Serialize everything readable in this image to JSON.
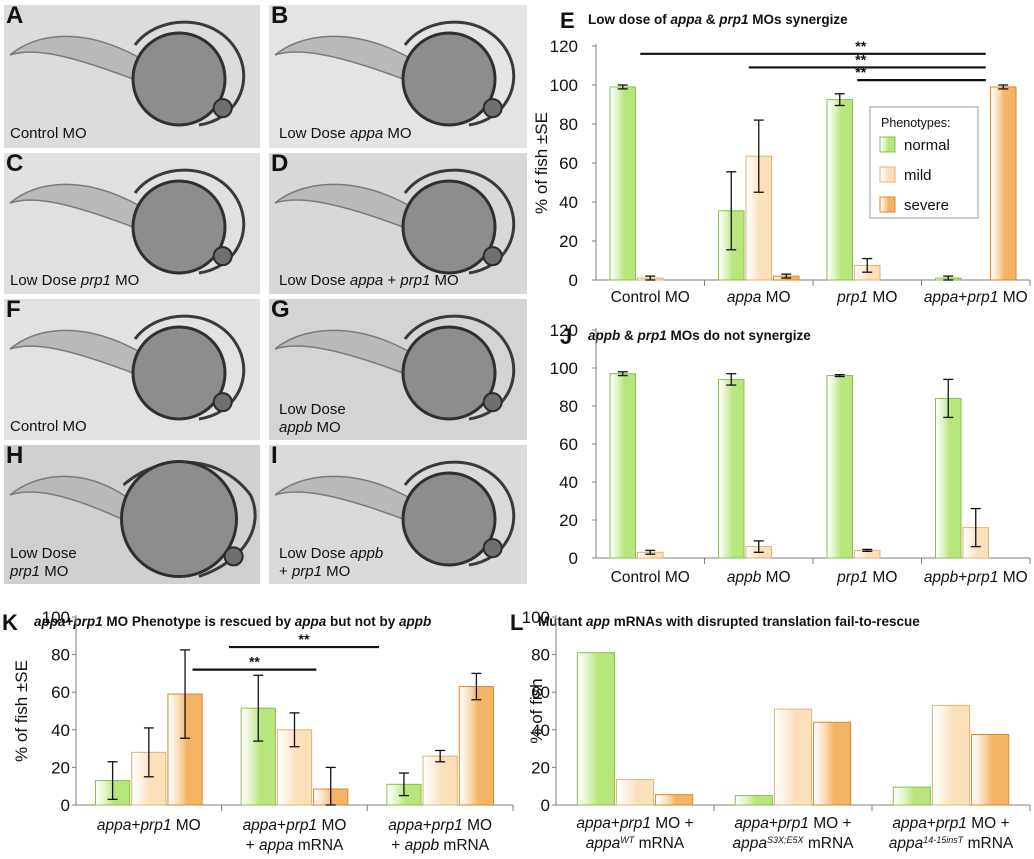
{
  "photos": [
    {
      "letter": "A",
      "caption": [
        {
          "t": "Control MO",
          "i": false
        }
      ]
    },
    {
      "letter": "B",
      "caption": [
        {
          "t": "Low Dose ",
          "i": false
        },
        {
          "t": "appa",
          "i": true
        },
        {
          "t": " MO",
          "i": false
        }
      ]
    },
    {
      "letter": "C",
      "caption": [
        {
          "t": "Low Dose ",
          "i": false
        },
        {
          "t": "prp1",
          "i": true
        },
        {
          "t": " MO",
          "i": false
        }
      ]
    },
    {
      "letter": "D",
      "caption": [
        {
          "t": "Low Dose ",
          "i": false
        },
        {
          "t": "appa",
          "i": true
        },
        {
          "t": " + ",
          "i": false
        },
        {
          "t": "prp1",
          "i": true
        },
        {
          "t": " MO",
          "i": false
        }
      ]
    },
    {
      "letter": "F",
      "caption": [
        {
          "t": "Control MO",
          "i": false
        }
      ]
    },
    {
      "letter": "G",
      "caption": [
        {
          "t": "Low Dose",
          "i": false
        },
        {
          "t": "\n",
          "i": false
        },
        {
          "t": "appb",
          "i": true
        },
        {
          "t": " MO",
          "i": false
        }
      ]
    },
    {
      "letter": "H",
      "caption": [
        {
          "t": "Low Dose",
          "i": false
        },
        {
          "t": "\n",
          "i": false
        },
        {
          "t": "prp1",
          "i": true
        },
        {
          "t": " MO",
          "i": false
        }
      ]
    },
    {
      "letter": "I",
      "caption": [
        {
          "t": "Low Dose ",
          "i": false
        },
        {
          "t": "appb",
          "i": true
        },
        {
          "t": "\n",
          "i": false
        },
        {
          "t": "+ ",
          "i": false
        },
        {
          "t": "prp1",
          "i": true
        },
        {
          "t": " MO",
          "i": false
        }
      ]
    }
  ],
  "legend": {
    "title": "Phenotypes:",
    "items": [
      "normal",
      "mild",
      "severe"
    ]
  },
  "colors": {
    "normal": "#b9e57d",
    "mild": "#fbe0b9",
    "severe": "#f4b466",
    "normal_edge": "#8bbf4c",
    "mild_edge": "#e2b27a",
    "severe_edge": "#d98a2c"
  },
  "chart_data": [
    {
      "letter": "E",
      "type": "bar",
      "title": [
        {
          "t": "Low dose of ",
          "i": false
        },
        {
          "t": "appa",
          "i": true
        },
        {
          "t": " & ",
          "i": false
        },
        {
          "t": "prp1",
          "i": true
        },
        {
          "t": " MOs synergize",
          "i": false
        }
      ],
      "ylabel": "% of fish ±SE",
      "ylim": [
        0,
        120
      ],
      "yticks": [
        0,
        20,
        40,
        60,
        80,
        100,
        120
      ],
      "categories": [
        [
          {
            "t": "Control MO",
            "i": false
          }
        ],
        [
          {
            "t": "appa",
            "i": true
          },
          {
            "t": " MO",
            "i": false
          }
        ],
        [
          {
            "t": "prp1",
            "i": true
          },
          {
            "t": " MO",
            "i": false
          }
        ],
        [
          {
            "t": "appa",
            "i": true
          },
          {
            "t": "+",
            "i": false
          },
          {
            "t": "prp1",
            "i": true
          },
          {
            "t": " MO",
            "i": false
          }
        ]
      ],
      "series": [
        {
          "name": "normal",
          "values": [
            99,
            35.5,
            92.5,
            1
          ],
          "err": [
            1,
            20,
            3,
            1
          ]
        },
        {
          "name": "mild",
          "values": [
            1,
            63.5,
            7.5,
            0
          ],
          "err": [
            1,
            18.5,
            3.5,
            0
          ]
        },
        {
          "name": "severe",
          "values": [
            0,
            2,
            0,
            99
          ],
          "err": [
            0,
            1,
            0,
            1
          ]
        }
      ],
      "significance": [
        {
          "from": 0,
          "to": 3,
          "y": 116,
          "label": "**"
        },
        {
          "from": 1,
          "to": 3,
          "y": 109,
          "label": "**"
        },
        {
          "from": 2,
          "to": 3,
          "y": 102.5,
          "label": "**"
        }
      ]
    },
    {
      "letter": "J",
      "type": "bar",
      "title": [
        {
          "t": "appb",
          "i": true
        },
        {
          "t": " & ",
          "i": false
        },
        {
          "t": "prp1",
          "i": true
        },
        {
          "t": " MOs do not synergize",
          "i": false
        }
      ],
      "ylabel": "",
      "ylim": [
        0,
        120
      ],
      "yticks": [
        0,
        20,
        40,
        60,
        80,
        100,
        120
      ],
      "categories": [
        [
          {
            "t": "Control MO",
            "i": false
          }
        ],
        [
          {
            "t": "appb",
            "i": true
          },
          {
            "t": " MO",
            "i": false
          }
        ],
        [
          {
            "t": "prp1",
            "i": true
          },
          {
            "t": " MO",
            "i": false
          }
        ],
        [
          {
            "t": "appb",
            "i": true
          },
          {
            "t": "+",
            "i": false
          },
          {
            "t": "prp1",
            "i": true
          },
          {
            "t": " MO",
            "i": false
          }
        ]
      ],
      "series": [
        {
          "name": "normal",
          "values": [
            97,
            94,
            96,
            84
          ],
          "err": [
            1,
            3,
            0.5,
            10
          ]
        },
        {
          "name": "mild",
          "values": [
            3,
            6,
            4,
            16
          ],
          "err": [
            1,
            3,
            0.5,
            10
          ]
        },
        {
          "name": "severe",
          "values": [
            0,
            0,
            0,
            0
          ],
          "err": [
            0,
            0,
            0,
            0
          ]
        }
      ],
      "significance": []
    },
    {
      "letter": "K",
      "type": "bar",
      "title": [
        {
          "t": "appa",
          "i": true
        },
        {
          "t": "+",
          "i": false
        },
        {
          "t": "prp1",
          "i": true
        },
        {
          "t": " MO Phenotype is rescued by ",
          "i": false
        },
        {
          "t": "appa",
          "i": true
        },
        {
          "t": " but not by ",
          "i": false
        },
        {
          "t": "appb",
          "i": true
        }
      ],
      "ylabel": "% of fish ±SE",
      "ylim": [
        0,
        100
      ],
      "yticks": [
        0,
        20,
        40,
        60,
        80,
        100
      ],
      "categories": [
        [
          {
            "t": "appa",
            "i": true
          },
          {
            "t": "+",
            "i": false
          },
          {
            "t": "prp1",
            "i": true
          },
          {
            "t": " MO",
            "i": false
          }
        ],
        [
          {
            "t": "appa",
            "i": true
          },
          {
            "t": "+",
            "i": false
          },
          {
            "t": "prp1",
            "i": true
          },
          {
            "t": " MO",
            "i": false
          },
          {
            "t": "\n",
            "i": false
          },
          {
            "t": "+ ",
            "i": false
          },
          {
            "t": "appa",
            "i": true
          },
          {
            "t": " mRNA",
            "i": false
          }
        ],
        [
          {
            "t": "appa",
            "i": true
          },
          {
            "t": "+",
            "i": false
          },
          {
            "t": "prp1",
            "i": true
          },
          {
            "t": " MO",
            "i": false
          },
          {
            "t": "\n",
            "i": false
          },
          {
            "t": "+ ",
            "i": false
          },
          {
            "t": "appb",
            "i": true
          },
          {
            "t": " mRNA",
            "i": false
          }
        ]
      ],
      "series": [
        {
          "name": "normal",
          "values": [
            13,
            51.5,
            11
          ],
          "err": [
            10,
            17.5,
            6
          ]
        },
        {
          "name": "mild",
          "values": [
            28,
            40,
            26
          ],
          "err": [
            13,
            9,
            3
          ]
        },
        {
          "name": "severe",
          "values": [
            59,
            8.5,
            63
          ],
          "err": [
            23.5,
            11.5,
            7
          ]
        }
      ],
      "significance": [
        {
          "from": 1,
          "to": 2,
          "y": 72,
          "label": "**",
          "x0": 0.8,
          "x1": 1.65
        },
        {
          "from": 1,
          "to": 2,
          "y": 84,
          "label": "**",
          "x0": 1.05,
          "x1": 2.08
        }
      ]
    },
    {
      "letter": "L",
      "type": "bar",
      "title": [
        {
          "t": "Mutant ",
          "i": false
        },
        {
          "t": "app",
          "i": true
        },
        {
          "t": " mRNAs with disrupted translation fail-to-rescue",
          "i": false
        }
      ],
      "ylabel": "% of fish",
      "ylim": [
        0,
        100
      ],
      "yticks": [
        0,
        20,
        40,
        60,
        80,
        100
      ],
      "categories": [
        [
          {
            "t": "appa",
            "i": true
          },
          {
            "t": "+",
            "i": false
          },
          {
            "t": "prp1",
            "i": true
          },
          {
            "t": " MO +",
            "i": false
          },
          {
            "t": "\n",
            "i": false
          },
          {
            "t": "appa",
            "i": true
          },
          {
            "t": "WT",
            "i": true,
            "sup": true
          },
          {
            "t": " mRNA",
            "i": false
          }
        ],
        [
          {
            "t": "appa",
            "i": true
          },
          {
            "t": "+",
            "i": false
          },
          {
            "t": "prp1",
            "i": true
          },
          {
            "t": " MO +",
            "i": false
          },
          {
            "t": "\n",
            "i": false
          },
          {
            "t": "appa",
            "i": true
          },
          {
            "t": "S3X;E5X",
            "i": true,
            "sup": true
          },
          {
            "t": " mRNA",
            "i": false
          }
        ],
        [
          {
            "t": "appa",
            "i": true
          },
          {
            "t": "+",
            "i": false
          },
          {
            "t": "prp1",
            "i": true
          },
          {
            "t": " MO +",
            "i": false
          },
          {
            "t": "\n",
            "i": false
          },
          {
            "t": "appa",
            "i": true
          },
          {
            "t": "14-15insT",
            "i": true,
            "sup": true
          },
          {
            "t": " mRNA",
            "i": false
          }
        ]
      ],
      "series": [
        {
          "name": "normal",
          "values": [
            81,
            5,
            9.5
          ]
        },
        {
          "name": "mild",
          "values": [
            13.5,
            51,
            53
          ]
        },
        {
          "name": "severe",
          "values": [
            5.5,
            44,
            37.5
          ]
        }
      ],
      "significance": []
    }
  ]
}
